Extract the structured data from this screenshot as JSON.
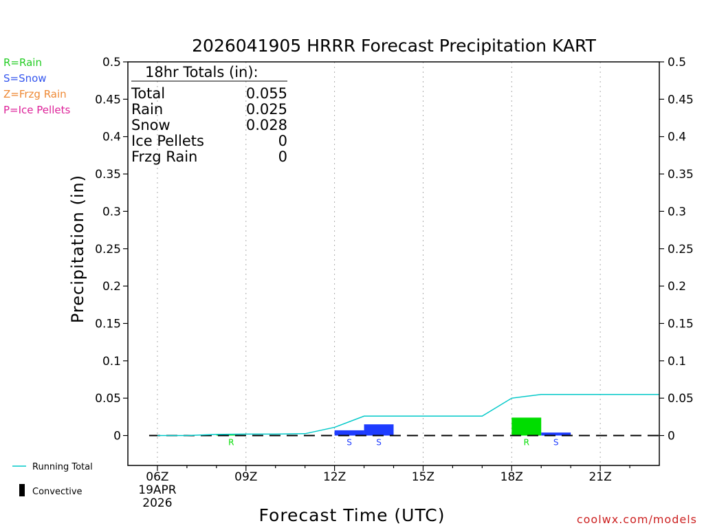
{
  "chart_data": {
    "type": "bar",
    "title": "2026041905 HRRR Forecast Precipitation KART",
    "xlabel": "Forecast Time (UTC)",
    "ylabel": "Precipitation (in)",
    "ylim": [
      -0.04,
      0.5
    ],
    "y_ticks": [
      0,
      0.05,
      0.1,
      0.15,
      0.2,
      0.25,
      0.3,
      0.35,
      0.4,
      0.45,
      0.5
    ],
    "y_tick_labels": [
      "0",
      "0.05",
      "0.1",
      "0.15",
      "0.2",
      "0.25",
      "0.3",
      "0.35",
      "0.4",
      "0.45",
      "0.5"
    ],
    "xlim": [
      5.0,
      23.0
    ],
    "x_ticks": [
      {
        "hour": 6,
        "label": "06Z",
        "sub1": "19APR",
        "sub2": "2026"
      },
      {
        "hour": 9,
        "label": "09Z",
        "sub1": "",
        "sub2": ""
      },
      {
        "hour": 12,
        "label": "12Z",
        "sub1": "",
        "sub2": ""
      },
      {
        "hour": 15,
        "label": "15Z",
        "sub1": "",
        "sub2": ""
      },
      {
        "hour": 18,
        "label": "18Z",
        "sub1": "",
        "sub2": ""
      },
      {
        "hour": 21,
        "label": "21Z",
        "sub1": "",
        "sub2": ""
      }
    ],
    "grid": "vertical dotted",
    "bars": [
      {
        "hour": 8,
        "value": 0.001,
        "type": "R",
        "color": "#00dd00"
      },
      {
        "hour": 12,
        "value": 0.007,
        "type": "S",
        "color": "#1e3cff"
      },
      {
        "hour": 13,
        "value": 0.015,
        "type": "S",
        "color": "#1e3cff"
      },
      {
        "hour": 18,
        "value": 0.024,
        "type": "R",
        "color": "#00dd00"
      },
      {
        "hour": 19,
        "value": 0.004,
        "type": "S",
        "color": "#1e3cff"
      }
    ],
    "running_total": {
      "name": "Running Total",
      "color": "#00c8c8",
      "points": [
        [
          6,
          0
        ],
        [
          7,
          0
        ],
        [
          8,
          0.0015
        ],
        [
          9,
          0.002
        ],
        [
          10,
          0.002
        ],
        [
          11,
          0.0025
        ],
        [
          12,
          0.011
        ],
        [
          13,
          0.026
        ],
        [
          14,
          0.026
        ],
        [
          15,
          0.026
        ],
        [
          16,
          0.026
        ],
        [
          17,
          0.026
        ],
        [
          18,
          0.05
        ],
        [
          19,
          0.055
        ],
        [
          20,
          0.055
        ],
        [
          21,
          0.055
        ],
        [
          22,
          0.055
        ],
        [
          23,
          0.055
        ]
      ]
    }
  },
  "totals_box": {
    "header": "18hr Totals (in):",
    "rows": [
      {
        "label": "Total",
        "value": "0.055"
      },
      {
        "label": "Rain",
        "value": "0.025"
      },
      {
        "label": "Snow",
        "value": "0.028"
      },
      {
        "label": "Ice Pellets",
        "value": "0"
      },
      {
        "label": "Frzg Rain",
        "value": "0"
      }
    ]
  },
  "type_legend": [
    {
      "text": "R=Rain",
      "color": "#22cc22"
    },
    {
      "text": "S=Snow",
      "color": "#3355ee"
    },
    {
      "text": "Z=Frzg Rain",
      "color": "#ee8833"
    },
    {
      "text": "P=Ice Pellets",
      "color": "#dd2299"
    }
  ],
  "bottom_legend": {
    "running_total": "Running Total",
    "convective": "Convective"
  },
  "credit": "coolwx.com/models"
}
